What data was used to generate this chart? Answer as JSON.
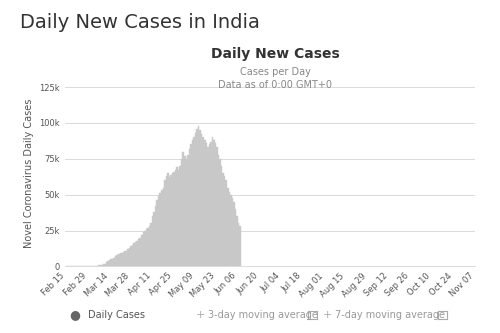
{
  "title_main": "Daily New Cases in India",
  "title_inner": "Daily New Cases",
  "subtitle1": "Cases per Day",
  "subtitle2": "Data as of 0:00 GMT+0",
  "ylabel": "Novel Coronavirus Daily Cases",
  "bar_color": "#c8c8c8",
  "background_color": "#ffffff",
  "grid_color": "#cccccc",
  "title_main_fontsize": 14,
  "title_inner_fontsize": 10,
  "subtitle_fontsize": 7,
  "ylabel_fontsize": 7,
  "tick_fontsize": 6,
  "legend_fontsize": 7,
  "ylim": [
    0,
    130000
  ],
  "yticks": [
    0,
    25000,
    50000,
    75000,
    100000,
    125000
  ],
  "xtick_labels": [
    "Feb 15",
    "Feb 29",
    "Mar 14",
    "Mar 28",
    "Apr 11",
    "Apr 25",
    "May 09",
    "May 23",
    "Jun 06",
    "Jun 20",
    "Jul 04",
    "Jul 18",
    "Aug 01",
    "Aug 15",
    "Aug 29",
    "Sep 12",
    "Sep 26",
    "Oct 10",
    "Oct 24",
    "Nov 07"
  ],
  "xtick_positions": [
    0,
    14,
    28,
    42,
    56,
    70,
    84,
    98,
    112,
    126,
    140,
    154,
    168,
    182,
    196,
    210,
    224,
    238,
    252,
    266
  ],
  "daily_cases": [
    0,
    0,
    0,
    0,
    0,
    0,
    10,
    12,
    15,
    18,
    20,
    25,
    40,
    60,
    80,
    100,
    150,
    200,
    300,
    400,
    500,
    700,
    900,
    1200,
    1500,
    2000,
    2800,
    3500,
    4200,
    5000,
    5500,
    6200,
    7000,
    7800,
    8500,
    9000,
    9500,
    10000,
    10500,
    11000,
    12000,
    13000,
    14000,
    15000,
    16000,
    17000,
    18000,
    19000,
    20000,
    22000,
    24000,
    25000,
    26000,
    27000,
    28000,
    30000,
    35000,
    38000,
    42000,
    46000,
    49000,
    51000,
    53000,
    55000,
    60000,
    63000,
    65000,
    62000,
    64000,
    65000,
    66000,
    67000,
    69000,
    67000,
    70000,
    75000,
    80000,
    77000,
    75000,
    78000,
    82000,
    85000,
    88000,
    90000,
    93000,
    96000,
    98000,
    95000,
    92000,
    90000,
    88000,
    86000,
    83000,
    85000,
    87000,
    90000,
    88000,
    86000,
    83000,
    78000,
    75000,
    70000,
    65000,
    63000,
    60000,
    55000,
    52000,
    50000,
    48000,
    45000,
    40000,
    35000,
    30000,
    28000
  ]
}
